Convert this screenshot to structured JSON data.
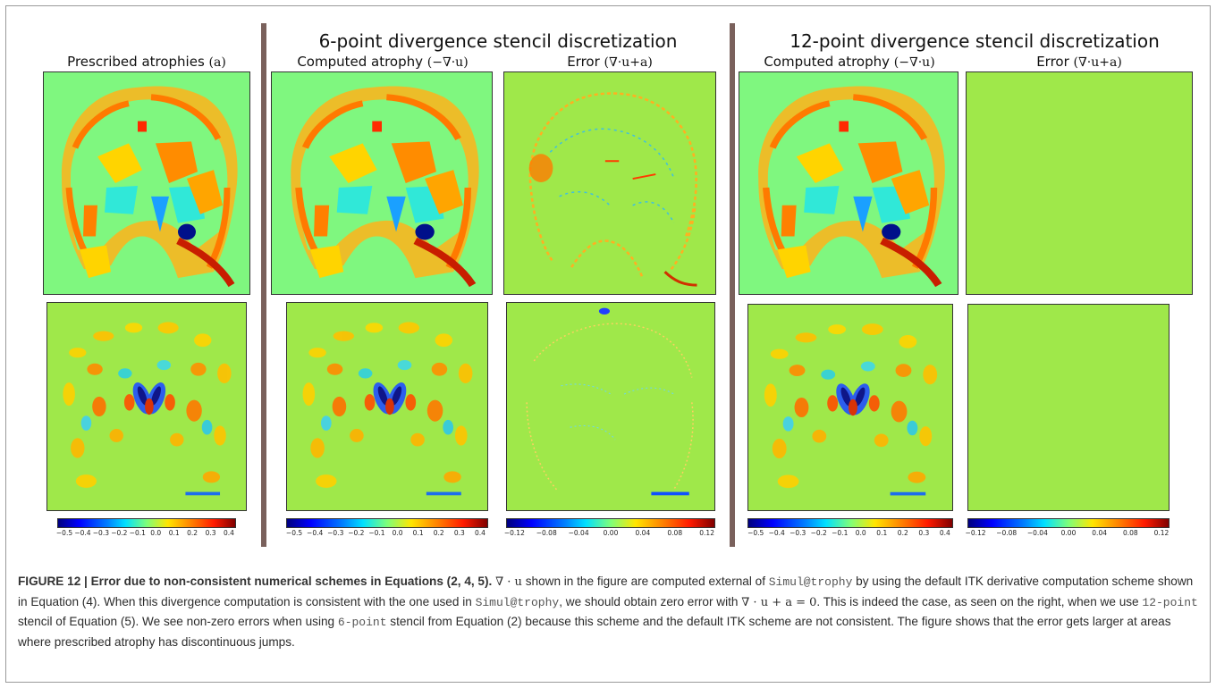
{
  "figure": {
    "group_titles": {
      "six_point": "6-point divergence stencil discretization",
      "twelve_point": "12-point divergence stencil discretization"
    },
    "panel_titles": {
      "prescribed": {
        "text": "Prescribed atrophies ",
        "math": "(a)"
      },
      "computed_6": {
        "text": "Computed atrophy ",
        "math": "(−∇·u)"
      },
      "error_6": {
        "text": "Error ",
        "math": "(∇·u+a)"
      },
      "computed_12": {
        "text": "Computed atrophy ",
        "math": "(−∇·u)"
      },
      "error_12": {
        "text": "Error ",
        "math": "(∇·u+a)"
      }
    },
    "colorbars": {
      "atrophy_ticks": [
        "−0.5",
        "−0.4",
        "−0.3",
        "−0.2",
        "−0.1",
        "0.0",
        "0.1",
        "0.2",
        "0.3",
        "0.4"
      ],
      "error_ticks": [
        "−0.12",
        "−0.08",
        "−0.04",
        "0.00",
        "0.04",
        "0.08",
        "0.12"
      ]
    },
    "colors": {
      "top_background": "#7ff77f",
      "bottom_background": "#9fe84a",
      "divider": "#7a615c"
    }
  },
  "caption": {
    "label": "FIGURE 12 | Error due to non-consistent numerical schemes in Equations (2, 4, 5).",
    "s1_sym": "∇ · u",
    "s1a": " shown in the figure are computed external of ",
    "tool1": "Simul@trophy",
    "s1b": " by using the default ITK derivative computation scheme shown in Equation (4). When this divergence computation is consistent with the one used in ",
    "tool2": "Simul@trophy",
    "s2a": ", we should obtain zero error with ",
    "s2_eq": "∇ · u + a = 0",
    "s2b": ". This is indeed the case, as seen on the right, when we use ",
    "stencil12": "12-point",
    "s3": " stencil of Equation (5). We see non-zero errors when using ",
    "stencil6": "6-point",
    "s4": " stencil from Equation (2) because this scheme and the default ITK scheme are not consistent. The figure shows that the error gets larger at areas where prescribed atrophy has discontinuous jumps."
  }
}
